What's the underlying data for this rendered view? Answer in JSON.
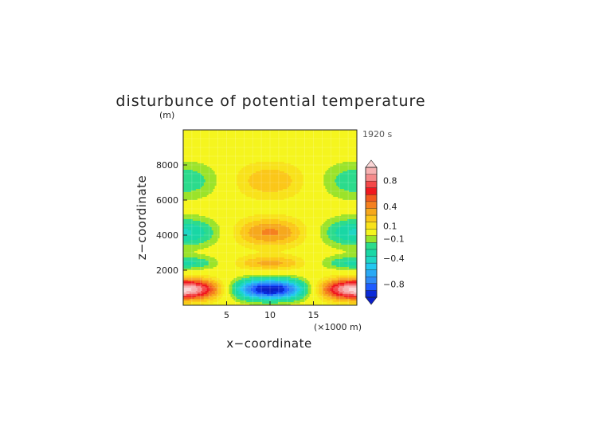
{
  "chart_data": {
    "type": "heatmap",
    "title": "disturbunce of potential temperature",
    "xlabel": "x−coordinate",
    "ylabel": "z−coordinate",
    "x_unit": "(×1000 m)",
    "y_unit": "(m)",
    "time_label": "1920 s",
    "xlim": [
      0,
      20
    ],
    "ylim": [
      0,
      10000
    ],
    "x_ticks": [
      5,
      10,
      15
    ],
    "y_ticks": [
      2000,
      4000,
      6000,
      8000
    ],
    "grid": true,
    "colorbar": {
      "placement": "right",
      "labels": [
        "0.8",
        "0.4",
        "0.1",
        "−0.1",
        "−0.4",
        "−0.8"
      ],
      "levels": [
        -1.0,
        -0.9,
        -0.8,
        -0.7,
        -0.6,
        -0.5,
        -0.4,
        -0.3,
        -0.2,
        -0.1,
        0.1,
        0.2,
        0.3,
        0.4,
        0.5,
        0.6,
        0.7,
        0.8,
        0.9,
        1.0
      ],
      "colors": [
        "#0a2ad8",
        "#1e5cff",
        "#2f8bf6",
        "#2aa9f5",
        "#22c8ef",
        "#1fd6c4",
        "#19d7a5",
        "#2cdb8c",
        "#9be32a",
        "#f5f51e",
        "#f8e21a",
        "#fbc719",
        "#f6a81c",
        "#f5801f",
        "#f25a1f",
        "#f0181f",
        "#f44848",
        "#f58a8a",
        "#f7b1b1"
      ],
      "under_color": "#0a1ec8",
      "over_color": "#fbd6d6"
    },
    "field_components": [
      {
        "z_center": 900,
        "z_width": 600,
        "x_mode": 1,
        "amplitude": 1.05
      },
      {
        "z_center": 2400,
        "z_width": 420,
        "x_mode": 1,
        "amplitude": -0.33
      },
      {
        "z_center": 4150,
        "z_width": 850,
        "x_mode": 1,
        "amplitude": -0.42
      },
      {
        "z_center": 7100,
        "z_width": 1100,
        "x_mode": 1,
        "amplitude": -0.28
      }
    ],
    "field_offset": 0.0
  }
}
